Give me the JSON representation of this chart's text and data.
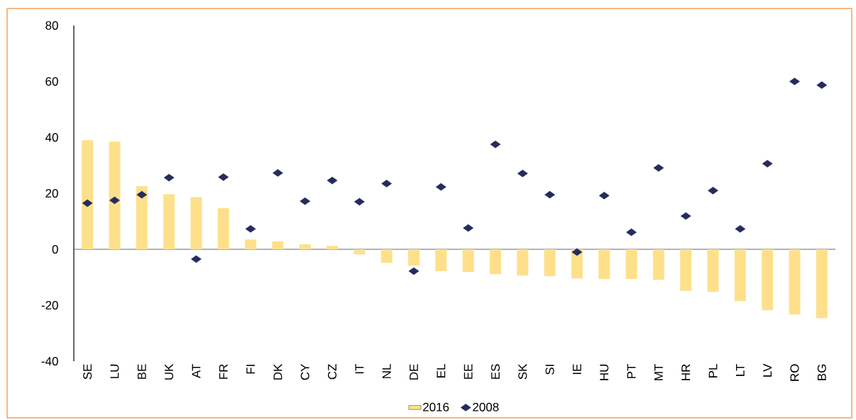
{
  "chart_data": {
    "type": "bar",
    "categories": [
      "SE",
      "LU",
      "BE",
      "UK",
      "AT",
      "FR",
      "FI",
      "DK",
      "CY",
      "CZ",
      "IT",
      "NL",
      "DE",
      "EL",
      "EE",
      "ES",
      "SK",
      "SI",
      "IE",
      "HU",
      "PT",
      "MT",
      "HR",
      "PL",
      "LT",
      "LV",
      "RO",
      "BG"
    ],
    "series": [
      {
        "name": "2016",
        "color": "#fee08b",
        "values": [
          39.0,
          38.5,
          22.5,
          19.7,
          18.7,
          14.7,
          3.5,
          2.8,
          1.8,
          1.2,
          -1.8,
          -4.8,
          -5.8,
          -7.8,
          -8.1,
          -8.9,
          -9.4,
          -9.6,
          -10.4,
          -10.6,
          -10.6,
          -10.9,
          -14.9,
          -15.2,
          -18.5,
          -21.8,
          -23.3,
          -24.6
        ]
      },
      {
        "name": "2008",
        "type": "scatter",
        "color": "#262b5e",
        "values": [
          16.5,
          17.5,
          19.5,
          25.6,
          -3.5,
          25.8,
          7.3,
          27.3,
          17.2,
          24.6,
          17.0,
          23.5,
          -7.8,
          22.3,
          7.6,
          37.5,
          27.1,
          19.5,
          -1.0,
          19.2,
          6.1,
          29.1,
          11.9,
          21.0,
          7.3,
          30.6,
          60.0,
          58.7
        ]
      }
    ],
    "ylim": [
      -40,
      80
    ],
    "yticks": [
      -40,
      -20,
      0,
      20,
      40,
      60,
      80
    ],
    "marker": "diamond",
    "legend": "bottom"
  }
}
